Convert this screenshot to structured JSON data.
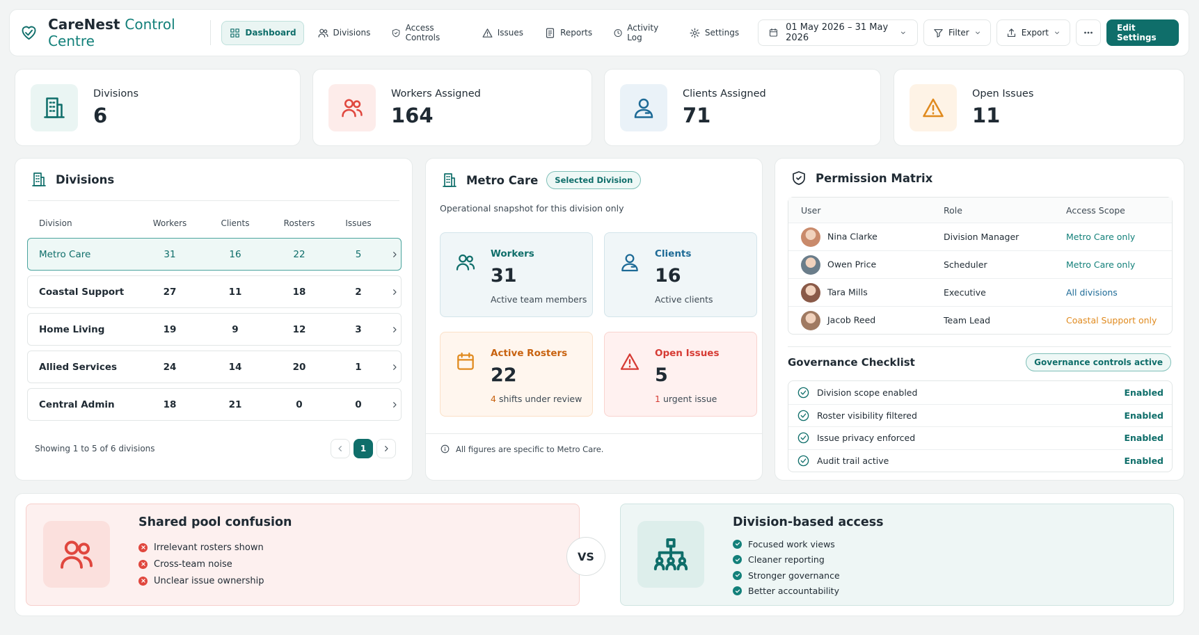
{
  "header": {
    "brand": "CareNest",
    "brand_accent": "Control Centre",
    "nav": [
      "Dashboard",
      "Divisions",
      "Access Controls",
      "Issues",
      "Reports",
      "Activity Log",
      "Settings"
    ],
    "date_range": "01 May 2026 – 31 May 2026",
    "filter": "Filter",
    "export": "Export",
    "edit": "Edit Settings"
  },
  "stats": [
    {
      "label": "Divisions",
      "value": 6
    },
    {
      "label": "Workers Assigned",
      "value": 164
    },
    {
      "label": "Clients Assigned",
      "value": 71
    },
    {
      "label": "Open Issues",
      "value": 11
    }
  ],
  "divisions": {
    "title": "Divisions",
    "columns": [
      "Division",
      "Workers",
      "Clients",
      "Rosters",
      "Issues"
    ],
    "rows": [
      [
        "Metro Care",
        31,
        16,
        22,
        5
      ],
      [
        "Coastal Support",
        27,
        11,
        18,
        2
      ],
      [
        "Home Living",
        19,
        9,
        12,
        3
      ],
      [
        "Allied Services",
        24,
        14,
        20,
        1
      ],
      [
        "Central Admin",
        18,
        21,
        0,
        0
      ]
    ],
    "footer": "Showing 1 to 5 of 6 divisions",
    "page": 1
  },
  "division_detail": {
    "title": "Metro Care",
    "badge": "Selected Division",
    "subtitle": "Operational snapshot for this division only",
    "cards": [
      {
        "label": "Workers",
        "value": 31,
        "note": "Active team members"
      },
      {
        "label": "Clients",
        "value": 16,
        "note": "Active clients"
      },
      {
        "label": "Active Rosters",
        "value": 22,
        "note_count": 4,
        "note": "shifts under review"
      },
      {
        "label": "Open Issues",
        "value": 5,
        "note_count": 1,
        "note": "urgent issue"
      }
    ],
    "footnote": "All figures are specific to Metro Care."
  },
  "permissions": {
    "title": "Permission Matrix",
    "columns": [
      "User",
      "Role",
      "Access Scope"
    ],
    "rows": [
      {
        "user": "Nina Clarke",
        "role": "Division Manager",
        "scope": "Metro Care only",
        "color": "#13807a"
      },
      {
        "user": "Owen Price",
        "role": "Scheduler",
        "scope": "Metro Care only",
        "color": "#13807a"
      },
      {
        "user": "Tara Mills",
        "role": "Executive",
        "scope": "All divisions",
        "color": "#1d6a96"
      },
      {
        "user": "Jacob Reed",
        "role": "Team Lead",
        "scope": "Coastal Support only",
        "color": "#e08a1e"
      }
    ]
  },
  "checklist": {
    "title": "Governance Checklist",
    "badge": "Governance controls active",
    "items": [
      {
        "label": "Division scope enabled",
        "status": "Enabled"
      },
      {
        "label": "Roster visibility filtered",
        "status": "Enabled"
      },
      {
        "label": "Issue privacy enforced",
        "status": "Enabled"
      },
      {
        "label": "Audit trail active",
        "status": "Enabled"
      }
    ]
  },
  "comparison": {
    "left": {
      "title": "Shared pool confusion",
      "items": [
        "Irrelevant rosters shown",
        "Cross-team noise",
        "Unclear issue ownership"
      ]
    },
    "vs": "VS",
    "right": {
      "title": "Division-based access",
      "items": [
        "Focused work views",
        "Cleaner reporting",
        "Stronger governance",
        "Better accountability"
      ]
    }
  }
}
